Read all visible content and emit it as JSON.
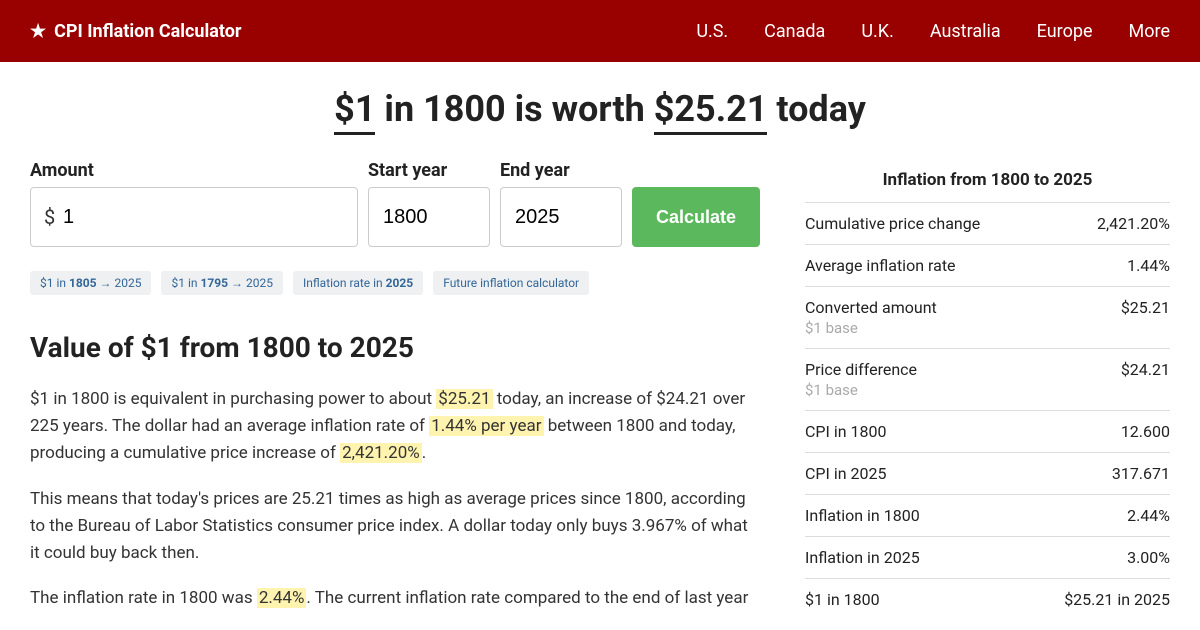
{
  "header": {
    "site_title": "CPI Inflation Calculator",
    "nav": [
      "U.S.",
      "Canada",
      "U.K.",
      "Australia",
      "Europe",
      "More"
    ]
  },
  "title": {
    "amount": "$1",
    "mid1": " in 1800 is worth ",
    "value": "$25.21",
    "mid2": " today"
  },
  "form": {
    "amount_label": "Amount",
    "amount_value": "1",
    "start_label": "Start year",
    "start_value": "1800",
    "end_label": "End year",
    "end_value": "2025",
    "button": "Calculate"
  },
  "chips": [
    {
      "pre": "$1 in ",
      "bold": "1805",
      "post": " → 2025"
    },
    {
      "pre": "$1 in ",
      "bold": "1795",
      "post": " → 2025"
    },
    {
      "pre": "Inflation rate in ",
      "bold": "2025",
      "post": ""
    },
    {
      "pre": "Future inflation calculator",
      "bold": "",
      "post": ""
    }
  ],
  "section_title": "Value of $1 from 1800 to 2025",
  "para1": {
    "a": "$1 in 1800 is equivalent in purchasing power to about ",
    "h1": "$25.21",
    "b": " today, an increase of $24.21 over 225 years. The dollar had an average inflation rate of ",
    "h2": "1.44% per year",
    "c": " between 1800 and today, producing a cumulative price increase of ",
    "h3": "2,421.20%",
    "d": "."
  },
  "para2": "This means that today's prices are 25.21 times as high as average prices since 1800, according to the Bureau of Labor Statistics consumer price index. A dollar today only buys 3.967% of what it could buy back then.",
  "para3": {
    "a": "The inflation rate in 1800 was ",
    "h1": "2.44%",
    "b": ". The current inflation rate compared to the end of last year"
  },
  "stats": {
    "title": "Inflation from 1800 to 2025",
    "rows": [
      {
        "label": "Cumulative price change",
        "sub": "",
        "val": "2,421.20%"
      },
      {
        "label": "Average inflation rate",
        "sub": "",
        "val": "1.44%"
      },
      {
        "label": "Converted amount",
        "sub": "$1 base",
        "val": "$25.21"
      },
      {
        "label": "Price difference",
        "sub": "$1 base",
        "val": "$24.21"
      },
      {
        "label": "CPI in 1800",
        "sub": "",
        "val": "12.600"
      },
      {
        "label": "CPI in 2025",
        "sub": "",
        "val": "317.671"
      },
      {
        "label": "Inflation in 1800",
        "sub": "",
        "val": "2.44%"
      },
      {
        "label": "Inflation in 2025",
        "sub": "",
        "val": "3.00%"
      },
      {
        "label": "$1 in 1800",
        "sub": "",
        "val": "$25.21 in 2025"
      }
    ]
  }
}
